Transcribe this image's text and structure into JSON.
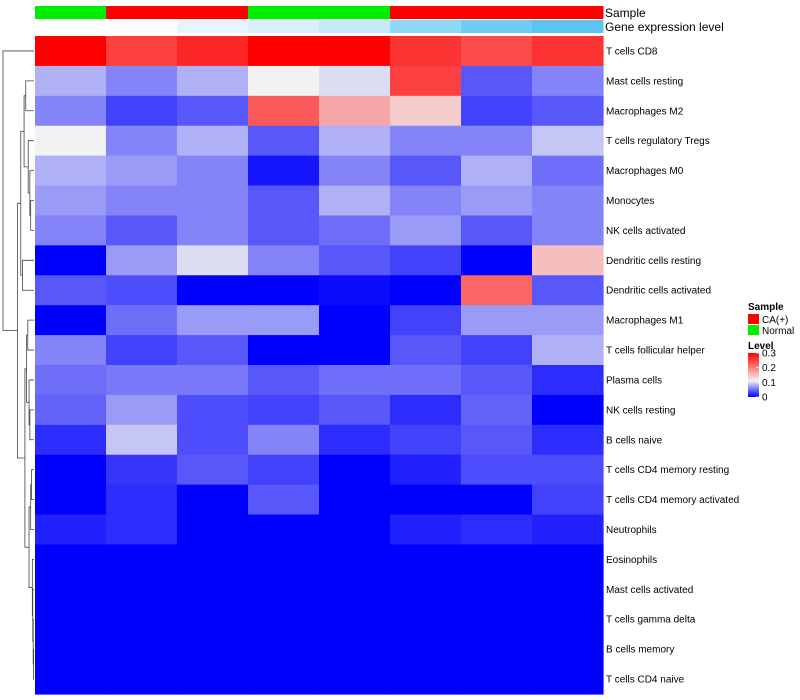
{
  "chart_data": {
    "type": "heatmap",
    "annotation_rows": {
      "sample_label": "Sample",
      "expression_label": "Gene expression level"
    },
    "columns": [
      {
        "sample": "Normal",
        "expression": "#ffffff"
      },
      {
        "sample": "CA(+)",
        "expression": "#ffffff"
      },
      {
        "sample": "CA(+)",
        "expression": "#e6f4fb"
      },
      {
        "sample": "Normal",
        "expression": "#d9f0fa"
      },
      {
        "sample": "Normal",
        "expression": "#c6e9f8"
      },
      {
        "sample": "CA(+)",
        "expression": "#8fd8f4"
      },
      {
        "sample": "CA(+)",
        "expression": "#6ecdf0"
      },
      {
        "sample": "CA(+)",
        "expression": "#5bc5ee"
      }
    ],
    "rows": [
      "T cells CD8",
      "Mast cells resting",
      "Macrophages M2",
      "T cells regulatory  Tregs",
      "Macrophages M0",
      "Monocytes",
      "NK cells activated",
      "Dendritic cells resting",
      "Dendritic cells activated",
      "Macrophages M1",
      "T cells follicular helper",
      "Plasma cells",
      "NK cells resting",
      "B cells naive",
      "T cells CD4 memory resting",
      "T cells CD4 memory activated",
      "Neutrophils",
      "Eosinophils",
      "Mast cells activated",
      "T cells gamma delta",
      "B cells memory",
      "T cells CD4 naive"
    ],
    "values": [
      [
        0.3,
        0.25,
        0.27,
        0.3,
        0.3,
        0.26,
        0.24,
        0.26
      ],
      [
        0.08,
        0.06,
        0.08,
        0.11,
        0.1,
        0.25,
        0.04,
        0.06
      ],
      [
        0.06,
        0.03,
        0.04,
        0.23,
        0.17,
        0.14,
        0.03,
        0.04
      ],
      [
        0.11,
        0.06,
        0.08,
        0.04,
        0.08,
        0.06,
        0.06,
        0.09
      ],
      [
        0.08,
        0.07,
        0.06,
        0.01,
        0.06,
        0.04,
        0.08,
        0.05
      ],
      [
        0.07,
        0.06,
        0.06,
        0.04,
        0.08,
        0.06,
        0.07,
        0.06
      ],
      [
        0.06,
        0.04,
        0.06,
        0.04,
        0.05,
        0.07,
        0.04,
        0.06
      ],
      [
        0.0,
        0.07,
        0.1,
        0.06,
        0.04,
        0.03,
        0.0,
        0.15
      ],
      [
        0.04,
        0.035,
        0.0,
        0.0,
        0.005,
        0.0,
        0.22,
        0.04
      ],
      [
        0.0,
        0.05,
        0.07,
        0.07,
        0.0,
        0.03,
        0.07,
        0.07
      ],
      [
        0.06,
        0.03,
        0.04,
        0.0,
        0.0,
        0.04,
        0.03,
        0.08
      ],
      [
        0.05,
        0.055,
        0.055,
        0.04,
        0.05,
        0.05,
        0.04,
        0.02
      ],
      [
        0.045,
        0.07,
        0.035,
        0.03,
        0.04,
        0.02,
        0.045,
        0.0
      ],
      [
        0.02,
        0.09,
        0.035,
        0.06,
        0.02,
        0.03,
        0.04,
        0.02
      ],
      [
        0.0,
        0.025,
        0.04,
        0.03,
        0.0,
        0.015,
        0.035,
        0.035
      ],
      [
        0.0,
        0.02,
        0.0,
        0.04,
        0.0,
        0.0,
        0.0,
        0.03
      ],
      [
        0.015,
        0.02,
        0.0,
        0.0,
        0.0,
        0.015,
        0.02,
        0.015
      ],
      [
        0.0,
        0.0,
        0.0,
        0.0,
        0.0,
        0.0,
        0.0,
        0.0
      ],
      [
        0.0,
        0.0,
        0.0,
        0.0,
        0.0,
        0.0,
        0.0,
        0.0
      ],
      [
        0.0,
        0.0,
        0.0,
        0.0,
        0.0,
        0.0,
        0.0,
        0.0
      ],
      [
        0.0,
        0.0,
        0.0,
        0.0,
        0.0,
        0.0,
        0.0,
        0.0
      ],
      [
        0.0,
        0.0,
        0.0,
        0.0,
        0.0,
        0.0,
        0.0,
        0.0
      ]
    ],
    "color_scale": {
      "stops": [
        {
          "value": 0.0,
          "color": "#0000ff"
        },
        {
          "value": 0.11,
          "color": "#f2f2f2"
        },
        {
          "value": 0.3,
          "color": "#ff0000"
        }
      ],
      "range": [
        0,
        0.3
      ]
    },
    "sample_colors": {
      "CA(+)": "#ff0000",
      "Normal": "#00ee00"
    },
    "legend": {
      "sample_title": "Sample",
      "sample_entries": [
        "CA(+)",
        "Normal"
      ],
      "level_title": "Level",
      "level_ticks": [
        {
          "label": "0.3",
          "value": 0.3
        },
        {
          "label": "0.2",
          "value": 0.2
        },
        {
          "label": "0.1",
          "value": 0.1
        },
        {
          "label": "0",
          "value": 0.0
        }
      ]
    },
    "dendrogram": {
      "leaf_order": [
        0,
        1,
        2,
        3,
        4,
        5,
        6,
        7,
        8,
        9,
        10,
        11,
        12,
        13,
        14,
        15,
        16,
        17,
        18,
        19,
        20,
        21
      ],
      "merges": [
        {
          "a": {
            "leaf": 20
          },
          "b": {
            "leaf": 21
          },
          "height": 0.01
        },
        {
          "a": {
            "leaf": 19
          },
          "b": {
            "node": 0
          },
          "height": 0.02
        },
        {
          "a": {
            "leaf": 18
          },
          "b": {
            "node": 1
          },
          "height": 0.03
        },
        {
          "a": {
            "leaf": 17
          },
          "b": {
            "node": 2
          },
          "height": 0.04
        },
        {
          "a": {
            "leaf": 14
          },
          "b": {
            "leaf": 15
          },
          "height": 0.06
        },
        {
          "a": {
            "node": 4
          },
          "b": {
            "leaf": 16
          },
          "height": 0.08
        },
        {
          "a": {
            "node": 5
          },
          "b": {
            "node": 3
          },
          "height": 0.12
        },
        {
          "a": {
            "leaf": 12
          },
          "b": {
            "leaf": 13
          },
          "height": 0.1
        },
        {
          "a": {
            "leaf": 11
          },
          "b": {
            "node": 7
          },
          "height": 0.12
        },
        {
          "a": {
            "leaf": 9
          },
          "b": {
            "leaf": 10
          },
          "height": 0.15
        },
        {
          "a": {
            "node": 8
          },
          "b": {
            "node": 9
          },
          "height": 0.18
        },
        {
          "a": {
            "node": 10
          },
          "b": {
            "node": 6
          },
          "height": 0.22
        },
        {
          "a": {
            "leaf": 5
          },
          "b": {
            "leaf": 6
          },
          "height": 0.08
        },
        {
          "a": {
            "leaf": 4
          },
          "b": {
            "node": 12
          },
          "height": 0.1
        },
        {
          "a": {
            "leaf": 3
          },
          "b": {
            "node": 13
          },
          "height": 0.14
        },
        {
          "a": {
            "leaf": 1
          },
          "b": {
            "leaf": 2
          },
          "height": 0.2
        },
        {
          "a": {
            "node": 15
          },
          "b": {
            "node": 14
          },
          "height": 0.24
        },
        {
          "a": {
            "leaf": 7
          },
          "b": {
            "leaf": 8
          },
          "height": 0.28
        },
        {
          "a": {
            "node": 16
          },
          "b": {
            "node": 17
          },
          "height": 0.32
        },
        {
          "a": {
            "node": 18
          },
          "b": {
            "node": 11
          },
          "height": 0.4
        },
        {
          "a": {
            "leaf": 0
          },
          "b": {
            "node": 19
          },
          "height": 0.75
        }
      ]
    }
  }
}
